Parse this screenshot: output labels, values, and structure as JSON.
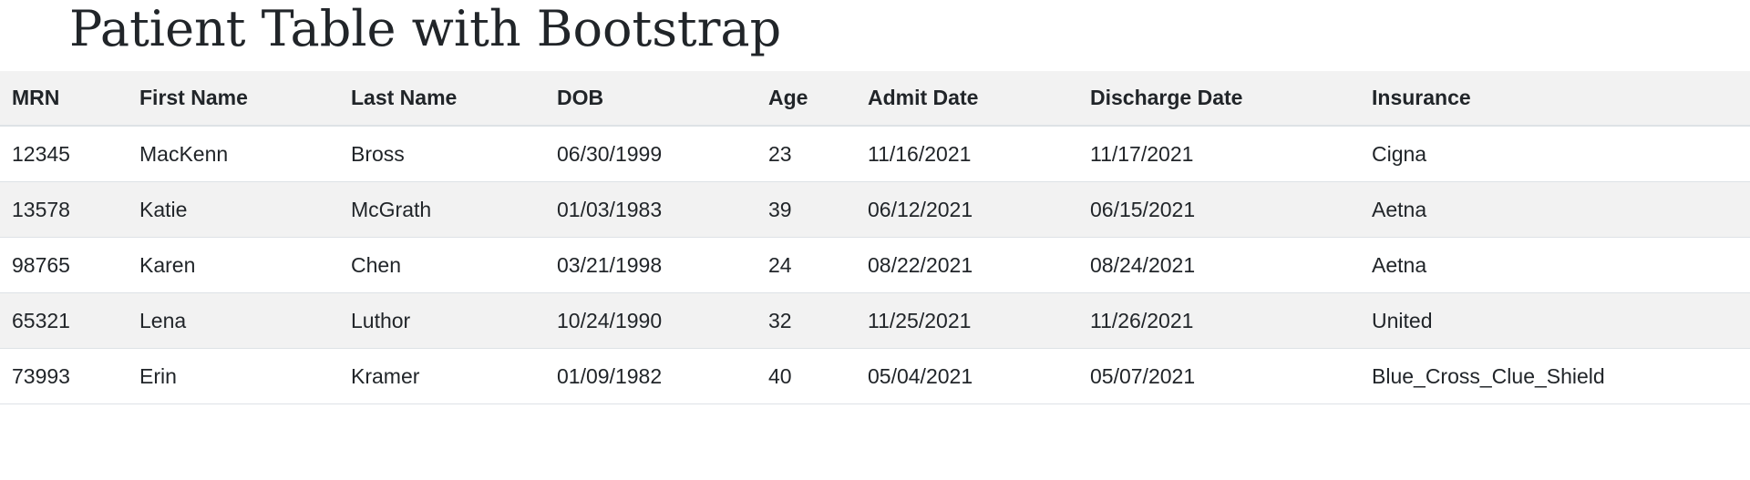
{
  "page": {
    "title": "Patient Table with Bootstrap"
  },
  "table": {
    "headers": [
      "MRN",
      "First Name",
      "Last Name",
      "DOB",
      "Age",
      "Admit Date",
      "Discharge Date",
      "Insurance"
    ],
    "rows": [
      [
        "12345",
        "MacKenn",
        "Bross",
        "06/30/1999",
        "23",
        "11/16/2021",
        "11/17/2021",
        "Cigna"
      ],
      [
        "13578",
        "Katie",
        "McGrath",
        "01/03/1983",
        "39",
        "06/12/2021",
        "06/15/2021",
        "Aetna"
      ],
      [
        "98765",
        "Karen",
        "Chen",
        "03/21/1998",
        "24",
        "08/22/2021",
        "08/24/2021",
        "Aetna"
      ],
      [
        "65321",
        "Lena",
        "Luthor",
        "10/24/1990",
        "32",
        "11/25/2021",
        "11/26/2021",
        "United"
      ],
      [
        "73993",
        "Erin",
        "Kramer",
        "01/09/1982",
        "40",
        "05/04/2021",
        "05/07/2021",
        "Blue_Cross_Clue_Shield"
      ]
    ]
  },
  "colors": {
    "stripe": "#f2f2f2",
    "border": "#dee2e6",
    "text": "#212529"
  }
}
